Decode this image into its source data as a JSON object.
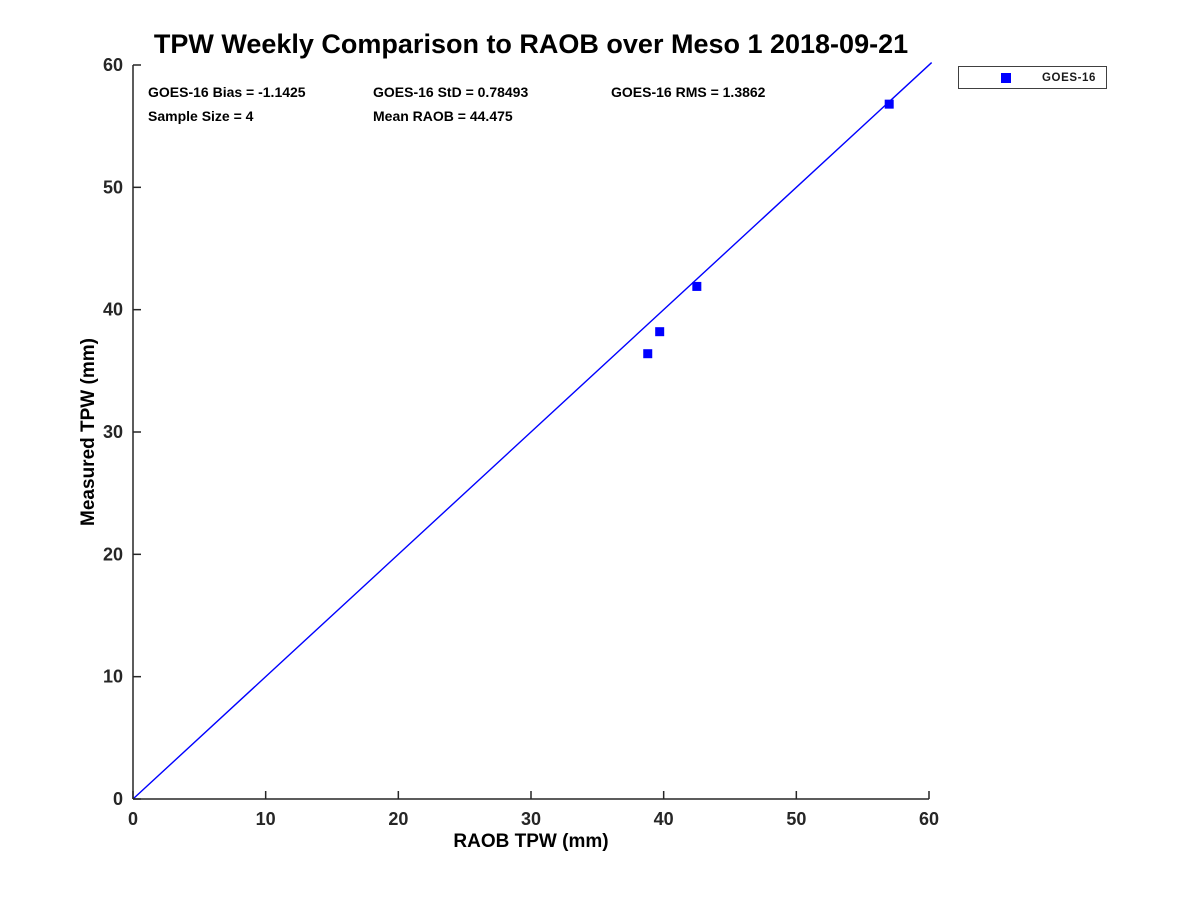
{
  "figure": {
    "background": "#ffffff"
  },
  "annotations": {
    "bias": "GOES-16 Bias = -1.1425",
    "std": "GOES-16 StD = 0.78493",
    "rms": "GOES-16 RMS = 1.3862",
    "sample_size": "Sample Size = 4",
    "mean_raob": "Mean RAOB = 44.475"
  },
  "legend": {
    "position": "top-right-outside",
    "entries": [
      {
        "label": "GOES-16",
        "marker": "filled-square",
        "color": "#0000ff"
      }
    ]
  },
  "chart_data": {
    "type": "scatter",
    "title": "TPW Weekly Comparison to RAOB over Meso 1 2018-09-21",
    "xlabel": "RAOB TPW (mm)",
    "ylabel": "Measured TPW (mm)",
    "xlim": [
      0,
      60
    ],
    "ylim": [
      0,
      60
    ],
    "xticks": [
      0,
      10,
      20,
      30,
      40,
      50,
      60
    ],
    "yticks": [
      0,
      10,
      20,
      30,
      40,
      50,
      60
    ],
    "grid": false,
    "box": false,
    "tick_direction": "in",
    "series": [
      {
        "name": "GOES-16",
        "marker": "square",
        "marker_size": 9,
        "color": "#0000ff",
        "points": [
          [
            38.8,
            36.4
          ],
          [
            39.7,
            38.2
          ],
          [
            42.5,
            41.9
          ],
          [
            57.0,
            56.8
          ]
        ]
      }
    ],
    "reference_line": {
      "name": "identity-line",
      "x": [
        0,
        60.2
      ],
      "y": [
        0,
        60.2
      ],
      "color": "#0000ff",
      "width": 1.4
    },
    "axis_color": "#262626",
    "tick_label_font_size": 18
  }
}
